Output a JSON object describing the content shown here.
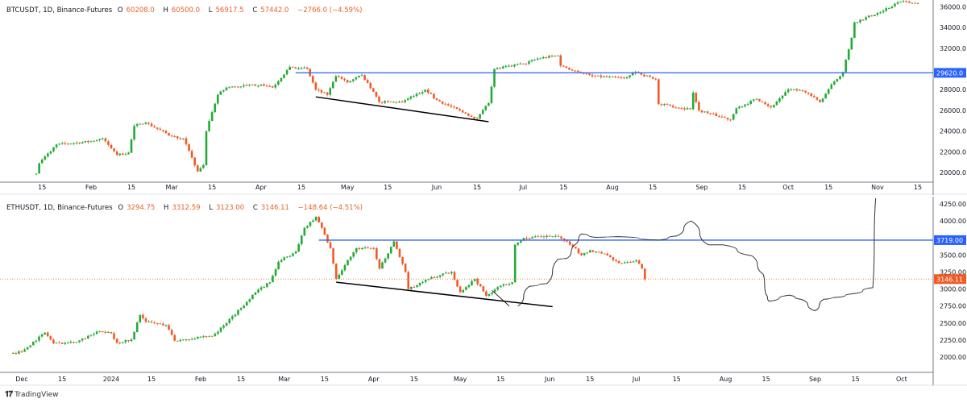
{
  "colors": {
    "up": "#22ab35",
    "down": "#f15a24",
    "level": "#2962ff",
    "trend": "#000000",
    "last_price": "#f57c3a",
    "axis": "#787b86"
  },
  "footer": {
    "brand": "TradingView",
    "logo_icon": "tradingview-logo-icon"
  },
  "chart_data": [
    {
      "type": "candlestick",
      "legend": {
        "symbol": "BTCUSDT, 1D, Binance-Futures",
        "o_label": "O",
        "o": "60208.0",
        "h_label": "H",
        "h": "60500.0",
        "l_label": "L",
        "l": "56917.5",
        "c_label": "C",
        "c": "57442.0",
        "change": "−2766.0 (−4.59%)"
      },
      "year": 2023,
      "ylim": [
        19000,
        36500
      ],
      "yticks": [
        "36000.0",
        "34000.0",
        "32000.0",
        "28000.0",
        "26000.0",
        "24000.0",
        "22000.0",
        "20000.0"
      ],
      "ytick_values": [
        36000,
        34000,
        32000,
        28000,
        26000,
        24000,
        22000,
        20000
      ],
      "xticks": [
        [
          "01-15",
          "15"
        ],
        [
          "02-01",
          "Feb"
        ],
        [
          "02-15",
          "15"
        ],
        [
          "03-01",
          "Mar"
        ],
        [
          "03-15",
          "15"
        ],
        [
          "04-01",
          "Apr"
        ],
        [
          "04-15",
          "15"
        ],
        [
          "05-01",
          "May"
        ],
        [
          "05-15",
          "15"
        ],
        [
          "06-01",
          "Jun"
        ],
        [
          "06-15",
          "15"
        ],
        [
          "07-01",
          "Jul"
        ],
        [
          "07-15",
          "15"
        ],
        [
          "08-01",
          "Aug"
        ],
        [
          "08-15",
          "15"
        ],
        [
          "09-01",
          "Sep"
        ],
        [
          "09-15",
          "15"
        ],
        [
          "10-01",
          "Oct"
        ],
        [
          "10-15",
          "15"
        ],
        [
          "11-01",
          "Nov"
        ],
        [
          "11-15",
          "15"
        ]
      ],
      "close_path": [
        [
          "01-13",
          19900
        ],
        [
          "01-14",
          20900
        ],
        [
          "01-20",
          22700
        ],
        [
          "02-01",
          23000
        ],
        [
          "02-05",
          23300
        ],
        [
          "02-10",
          21700
        ],
        [
          "02-14",
          21900
        ],
        [
          "02-16",
          24500
        ],
        [
          "02-20",
          24800
        ],
        [
          "03-01",
          23500
        ],
        [
          "03-05",
          23300
        ],
        [
          "03-10",
          20100
        ],
        [
          "03-12",
          20700
        ],
        [
          "03-13",
          24000
        ],
        [
          "03-17",
          27500
        ],
        [
          "03-20",
          28200
        ],
        [
          "04-01",
          28500
        ],
        [
          "04-05",
          28200
        ],
        [
          "04-11",
          30200
        ],
        [
          "04-17",
          30000
        ],
        [
          "04-20",
          28000
        ],
        [
          "04-24",
          27500
        ],
        [
          "04-27",
          29300
        ],
        [
          "05-01",
          28700
        ],
        [
          "05-06",
          29400
        ],
        [
          "05-10",
          27800
        ],
        [
          "05-12",
          26800
        ],
        [
          "05-20",
          26800
        ],
        [
          "05-28",
          28000
        ],
        [
          "06-01",
          27000
        ],
        [
          "06-10",
          25800
        ],
        [
          "06-15",
          25200
        ],
        [
          "06-19",
          26700
        ],
        [
          "06-21",
          30000
        ],
        [
          "07-01",
          30500
        ],
        [
          "07-06",
          31000
        ],
        [
          "07-13",
          31300
        ],
        [
          "07-14",
          30300
        ],
        [
          "07-25",
          29300
        ],
        [
          "08-05",
          29100
        ],
        [
          "08-09",
          29700
        ],
        [
          "08-16",
          29000
        ],
        [
          "08-17",
          26600
        ],
        [
          "08-28",
          26100
        ],
        [
          "08-29",
          27700
        ],
        [
          "08-31",
          26000
        ],
        [
          "09-11",
          25100
        ],
        [
          "09-13",
          26200
        ],
        [
          "09-20",
          27100
        ],
        [
          "09-25",
          26300
        ],
        [
          "10-01",
          28000
        ],
        [
          "10-06",
          27900
        ],
        [
          "10-12",
          26800
        ],
        [
          "10-16",
          28500
        ],
        [
          "10-20",
          29700
        ],
        [
          "10-23",
          33000
        ],
        [
          "10-24",
          34500
        ],
        [
          "11-01",
          35400
        ],
        [
          "11-09",
          36500
        ],
        [
          "11-15",
          36300
        ]
      ],
      "levels": [
        {
          "label": "29620.0",
          "value": 29620,
          "from": "04-13"
        }
      ],
      "trendlines": [
        {
          "from": [
            "04-20",
            27300
          ],
          "to": [
            "06-19",
            24900
          ]
        }
      ]
    },
    {
      "type": "candlestick",
      "legend": {
        "symbol": "ETHUSDT, 1D, Binance-Futures",
        "o_label": "O",
        "o": "3294.75",
        "h_label": "H",
        "h": "3312.59",
        "l_label": "L",
        "l": "3123.00",
        "c_label": "C",
        "c": "3146.11",
        "change": "−148.64 (−4.51%)"
      },
      "year_start": "2023-11-28",
      "ylim": [
        1780,
        4350
      ],
      "yticks": [
        "4250.00",
        "4000.00",
        "3500.00",
        "3250.00",
        "3000.00",
        "2750.00",
        "2500.00",
        "2250.00",
        "2000.00"
      ],
      "ytick_values": [
        4250,
        4000,
        3500,
        3250,
        3000,
        2750,
        2500,
        2250,
        2000
      ],
      "xticks": [
        [
          "2023-12-01",
          "Dec"
        ],
        [
          "2023-12-15",
          "15"
        ],
        [
          "2024-01-01",
          "2024"
        ],
        [
          "2024-01-15",
          "15"
        ],
        [
          "2024-02-01",
          "Feb"
        ],
        [
          "2024-02-15",
          "15"
        ],
        [
          "2024-03-01",
          "Mar"
        ],
        [
          "2024-03-15",
          "15"
        ],
        [
          "2024-04-01",
          "Apr"
        ],
        [
          "2024-04-15",
          "15"
        ],
        [
          "2024-05-01",
          "May"
        ],
        [
          "2024-05-15",
          "15"
        ],
        [
          "2024-06-01",
          "Jun"
        ],
        [
          "2024-06-15",
          "15"
        ],
        [
          "2024-07-01",
          "Jul"
        ],
        [
          "2024-07-15",
          "15"
        ],
        [
          "2024-08-01",
          "Aug"
        ],
        [
          "2024-08-15",
          "15"
        ],
        [
          "2024-09-01",
          "Sep"
        ],
        [
          "2024-09-15",
          "15"
        ],
        [
          "2024-10-01",
          "Oct"
        ]
      ],
      "close_path": [
        [
          "2023-11-28",
          2060
        ],
        [
          "2023-12-01",
          2080
        ],
        [
          "2023-12-09",
          2360
        ],
        [
          "2023-12-12",
          2200
        ],
        [
          "2023-12-20",
          2220
        ],
        [
          "2023-12-28",
          2380
        ],
        [
          "2024-01-01",
          2350
        ],
        [
          "2024-01-03",
          2210
        ],
        [
          "2024-01-08",
          2260
        ],
        [
          "2024-01-11",
          2620
        ],
        [
          "2024-01-13",
          2520
        ],
        [
          "2024-01-20",
          2470
        ],
        [
          "2024-01-23",
          2240
        ],
        [
          "2024-01-27",
          2260
        ],
        [
          "2024-02-05",
          2310
        ],
        [
          "2024-02-10",
          2500
        ],
        [
          "2024-02-20",
          2950
        ],
        [
          "2024-02-25",
          3100
        ],
        [
          "2024-02-28",
          3400
        ],
        [
          "2024-03-05",
          3550
        ],
        [
          "2024-03-08",
          3900
        ],
        [
          "2024-03-12",
          4060
        ],
        [
          "2024-03-14",
          3900
        ],
        [
          "2024-03-17",
          3600
        ],
        [
          "2024-03-19",
          3150
        ],
        [
          "2024-03-22",
          3350
        ],
        [
          "2024-03-26",
          3600
        ],
        [
          "2024-04-01",
          3600
        ],
        [
          "2024-04-03",
          3300
        ],
        [
          "2024-04-08",
          3700
        ],
        [
          "2024-04-12",
          3250
        ],
        [
          "2024-04-13",
          3000
        ],
        [
          "2024-04-20",
          3150
        ],
        [
          "2024-04-28",
          3250
        ],
        [
          "2024-05-01",
          2950
        ],
        [
          "2024-05-06",
          3150
        ],
        [
          "2024-05-10",
          2900
        ],
        [
          "2024-05-15",
          3050
        ],
        [
          "2024-05-19",
          3100
        ],
        [
          "2024-05-20",
          3650
        ],
        [
          "2024-05-23",
          3750
        ],
        [
          "2024-06-03",
          3780
        ],
        [
          "2024-06-07",
          3700
        ],
        [
          "2024-06-12",
          3500
        ],
        [
          "2024-06-15",
          3570
        ],
        [
          "2024-06-20",
          3520
        ],
        [
          "2024-06-25",
          3380
        ],
        [
          "2024-07-01",
          3420
        ],
        [
          "2024-07-03",
          3300
        ],
        [
          "2024-07-04",
          3146
        ]
      ],
      "last_price": {
        "label": "3146.11",
        "value": 3146.11
      },
      "levels": [
        {
          "label": "3719.00",
          "value": 3719,
          "from": "2024-03-13"
        }
      ],
      "trendlines": [
        {
          "from": [
            "2024-03-19",
            3100
          ],
          "to": [
            "2024-06-02",
            2740
          ]
        },
        {
          "from": [
            "2024-05-12",
            2980
          ],
          "to": [
            "2024-05-18",
            2750
          ]
        }
      ],
      "drawing_path": [
        [
          "2024-05-21",
          2750
        ],
        [
          "2024-05-25",
          3040
        ],
        [
          "2024-05-31",
          3080
        ],
        [
          "2024-06-04",
          3440
        ],
        [
          "2024-06-07",
          3450
        ],
        [
          "2024-06-10",
          3660
        ],
        [
          "2024-06-12",
          3810
        ],
        [
          "2024-06-17",
          3760
        ],
        [
          "2024-06-25",
          3770
        ],
        [
          "2024-07-09",
          3720
        ],
        [
          "2024-07-15",
          3780
        ],
        [
          "2024-07-20",
          4000
        ],
        [
          "2024-07-26",
          3650
        ],
        [
          "2024-07-31",
          3650
        ],
        [
          "2024-08-10",
          3490
        ],
        [
          "2024-08-14",
          3220
        ],
        [
          "2024-08-15",
          2920
        ],
        [
          "2024-08-16",
          2820
        ],
        [
          "2024-08-23",
          2910
        ],
        [
          "2024-08-27",
          2850
        ],
        [
          "2024-09-01",
          2680
        ],
        [
          "2024-09-04",
          2850
        ],
        [
          "2024-09-09",
          2880
        ],
        [
          "2024-09-14",
          2930
        ],
        [
          "2024-09-21",
          3020
        ],
        [
          "2024-09-22",
          4350
        ]
      ]
    }
  ]
}
